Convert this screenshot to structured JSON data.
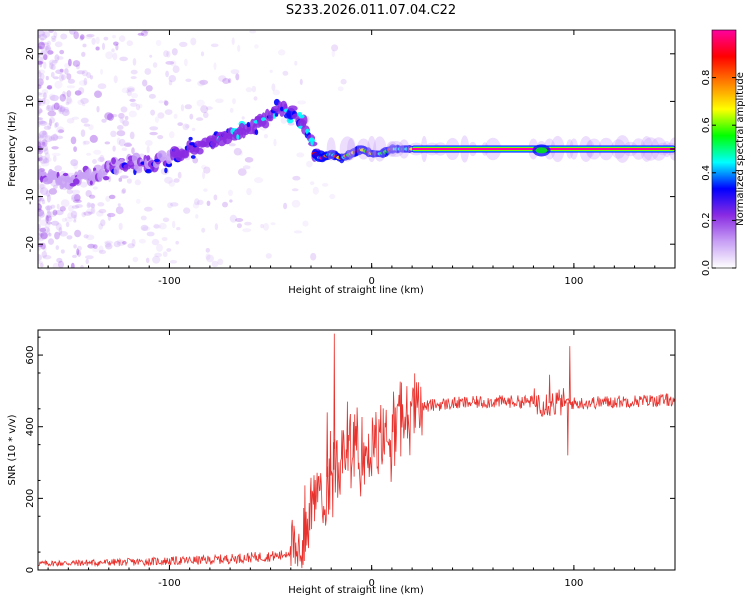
{
  "title": "S233.2026.011.07.04.C22",
  "chart_data": [
    {
      "type": "heatmap",
      "name": "spectrogram",
      "xlabel": "Height of straight line (km)",
      "ylabel": "Frequency (Hz)",
      "xlim": [
        -165,
        150
      ],
      "ylim": [
        -25,
        25
      ],
      "xticks": [
        -100,
        0,
        100
      ],
      "yticks": [
        -20,
        -10,
        0,
        10,
        20
      ],
      "xtick_labels": [
        "-100",
        "0",
        "100"
      ],
      "ytick_labels": [
        "-20",
        "-10",
        "0",
        "10",
        "20"
      ],
      "ridge": {
        "x": [
          -165,
          -150,
          -140,
          -130,
          -120,
          -110,
          -100,
          -90,
          -80,
          -70,
          -60,
          -50,
          -45,
          -40,
          -35,
          -30,
          -28,
          -25,
          -20,
          -15,
          -10,
          -5,
          0,
          5,
          10,
          15,
          20,
          40,
          60,
          80,
          85,
          90,
          95,
          150
        ],
        "y": [
          -6,
          -7,
          -6,
          -4,
          -3,
          -3,
          -2,
          0,
          1,
          3,
          4,
          7,
          8,
          8,
          6,
          3,
          -1,
          -2,
          -1,
          -2,
          -1,
          0,
          -1,
          -1,
          0,
          0,
          0,
          0,
          0,
          0,
          -1,
          0,
          0,
          0
        ]
      },
      "colorbar": {
        "label": "Normalized spectral amplitude",
        "ticks": [
          0.0,
          0.2,
          0.4,
          0.6,
          0.8
        ],
        "tick_labels": [
          "0.0",
          "0.2",
          "0.4",
          "0.6",
          "0.8"
        ],
        "range": [
          0,
          1
        ],
        "colors": [
          "#ffffff",
          "#c8a0f5",
          "#8a2be2",
          "#0000ff",
          "#00ffff",
          "#00ff00",
          "#ffff00",
          "#ff8000",
          "#ff0000",
          "#ff00a0"
        ]
      }
    },
    {
      "type": "line",
      "name": "snr",
      "xlabel": "Height of straight line (km)",
      "ylabel": "SNR (10 * v/v)",
      "xlim": [
        -165,
        150
      ],
      "ylim": [
        0,
        670
      ],
      "xticks": [
        -100,
        0,
        100
      ],
      "yticks": [
        0,
        200,
        400,
        600
      ],
      "xtick_labels": [
        "-100",
        "0",
        "100"
      ],
      "ytick_labels": [
        "0",
        "200",
        "400",
        "600"
      ],
      "color": "#e8322d",
      "envelope": {
        "x": [
          -165,
          -120,
          -80,
          -60,
          -45,
          -38,
          -32,
          -28,
          -22,
          -15,
          -10,
          -5,
          0,
          5,
          10,
          15,
          20,
          30,
          40,
          60,
          80,
          90,
          95,
          100,
          120,
          150
        ],
        "y": [
          18,
          22,
          28,
          35,
          40,
          60,
          130,
          200,
          260,
          300,
          320,
          330,
          340,
          350,
          380,
          420,
          450,
          460,
          465,
          470,
          470,
          465,
          470,
          465,
          470,
          475
        ]
      },
      "spikes": [
        {
          "x": -18.5,
          "y": 660
        },
        {
          "x": -22,
          "y": 440
        },
        {
          "x": -12,
          "y": 470
        },
        {
          "x": 98,
          "y": 625
        },
        {
          "x": 97,
          "y": 320
        },
        {
          "x": 88,
          "y": 545
        }
      ]
    }
  ]
}
